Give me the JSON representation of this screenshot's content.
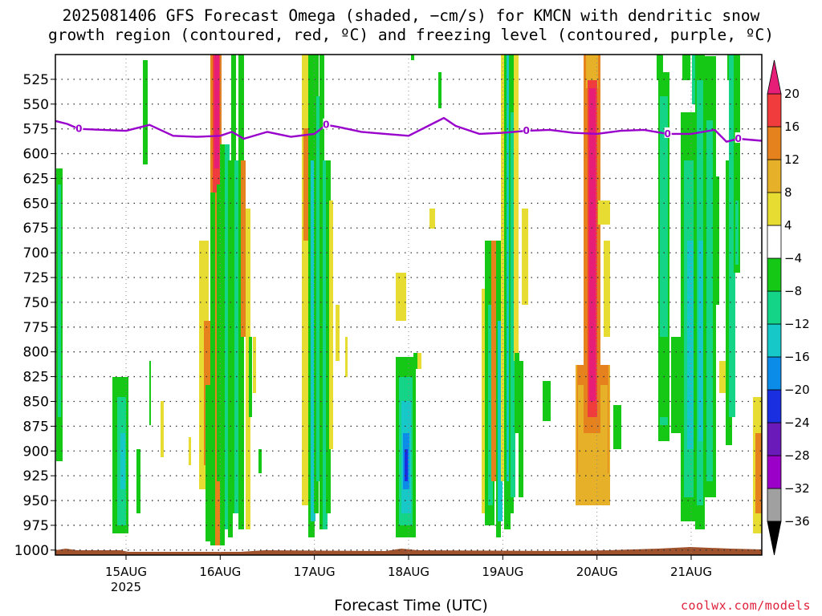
{
  "title": {
    "line1": "2025081406 GFS Forecast Omega (shaded, −cm/s) for KMCN with dendritic snow",
    "line2": "growth region (contoured, red, ºC) and freezing level (contoured, purple, ºC)"
  },
  "credit": "coolwx.com/models",
  "chart_data": {
    "type": "heatmap",
    "title": "2025081406 GFS Forecast Omega (shaded, −cm/s) for KMCN with dendritic snow growth region (contoured, red, ºC) and freezing level (contoured, purple, ºC)",
    "xlabel": "Forecast Time (UTC)",
    "ylabel": "",
    "x_range": [
      "2025-08-14T06",
      "2025-08-21T18"
    ],
    "y_range": [
      1005,
      500
    ],
    "y_ticks": [
      525,
      550,
      575,
      600,
      625,
      650,
      675,
      700,
      725,
      750,
      775,
      800,
      825,
      850,
      875,
      900,
      925,
      950,
      975,
      1000
    ],
    "x_ticks": [
      {
        "label": "15AUG",
        "sublabel": "2025",
        "time": "2025-08-15T00"
      },
      {
        "label": "16AUG",
        "time": "2025-08-16T00"
      },
      {
        "label": "17AUG",
        "time": "2025-08-17T00"
      },
      {
        "label": "18AUG",
        "time": "2025-08-18T00"
      },
      {
        "label": "19AUG",
        "time": "2025-08-19T00"
      },
      {
        "label": "20AUG",
        "time": "2025-08-20T00"
      },
      {
        "label": "21AUG",
        "time": "2025-08-21T00"
      }
    ],
    "grid": true,
    "colorbar": {
      "levels": [
        -36,
        -32,
        -28,
        -24,
        -20,
        -16,
        -12,
        -8,
        -4,
        4,
        8,
        12,
        16,
        20
      ],
      "colors": [
        "#a0a0a0",
        "#9a00c8",
        "#6a1ab8",
        "#1a30e0",
        "#0a8ce8",
        "#16c8c8",
        "#14d488",
        "#16c816",
        "#ffffff",
        "#e6dc32",
        "#e6b028",
        "#e6821e",
        "#f03c3c",
        "#e61e78"
      ],
      "under_color": "#000000",
      "over_color": "#e61e78"
    },
    "freezing_level_contour": {
      "label": "0",
      "color": "#9900cc",
      "points": [
        [
          "2025-08-14T06",
          567
        ],
        [
          "2025-08-14T09",
          570
        ],
        [
          "2025-08-14T12",
          575
        ],
        [
          "2025-08-14T18",
          576
        ],
        [
          "2025-08-15T00",
          577
        ],
        [
          "2025-08-15T06",
          571
        ],
        [
          "2025-08-15T12",
          582
        ],
        [
          "2025-08-15T18",
          583
        ],
        [
          "2025-08-16T00",
          582
        ],
        [
          "2025-08-16T03",
          578
        ],
        [
          "2025-08-16T06",
          585
        ],
        [
          "2025-08-16T12",
          578
        ],
        [
          "2025-08-16T18",
          583
        ],
        [
          "2025-08-17T00",
          580
        ],
        [
          "2025-08-17T03",
          571
        ],
        [
          "2025-08-17T06",
          573
        ],
        [
          "2025-08-17T12",
          578
        ],
        [
          "2025-08-17T18",
          580
        ],
        [
          "2025-08-18T00",
          582
        ],
        [
          "2025-08-18T06",
          570
        ],
        [
          "2025-08-18T09",
          564
        ],
        [
          "2025-08-18T12",
          572
        ],
        [
          "2025-08-18T18",
          580
        ],
        [
          "2025-08-19T00",
          579
        ],
        [
          "2025-08-19T06",
          577
        ],
        [
          "2025-08-19T12",
          576
        ],
        [
          "2025-08-19T18",
          579
        ],
        [
          "2025-08-20T00",
          580
        ],
        [
          "2025-08-20T06",
          577
        ],
        [
          "2025-08-20T12",
          576
        ],
        [
          "2025-08-20T18",
          580
        ],
        [
          "2025-08-21T00",
          580
        ],
        [
          "2025-08-21T06",
          576
        ],
        [
          "2025-08-21T09",
          588
        ],
        [
          "2025-08-21T12",
          585
        ],
        [
          "2025-08-21T18",
          587
        ]
      ]
    }
  }
}
